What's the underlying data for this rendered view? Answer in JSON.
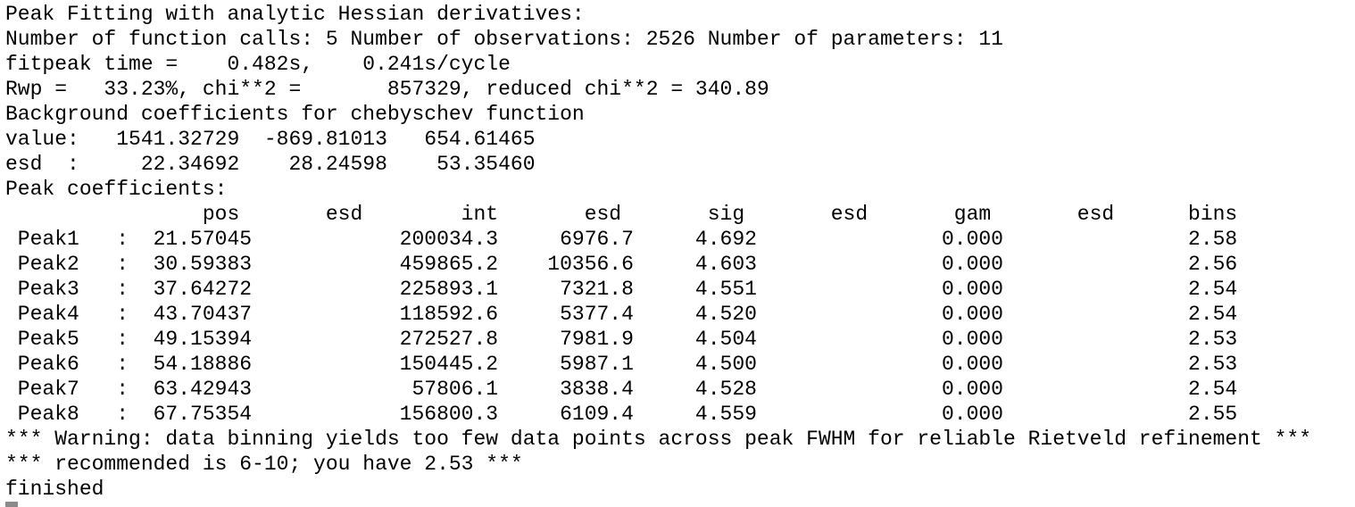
{
  "terminal": {
    "lines": [
      "Peak Fitting with analytic Hessian derivatives:",
      "Number of function calls: 5 Number of observations: 2526 Number of parameters: 11",
      "fitpeak time =    0.482s,    0.241s/cycle",
      "Rwp =   33.23%, chi**2 =       857329, reduced chi**2 = 340.89",
      "Background coefficients for chebyschev function",
      "value:   1541.32729  -869.81013   654.61465",
      "esd  :     22.34692    28.24598    53.35460",
      "Peak coefficients:",
      "                pos       esd        int       esd       sig       esd       gam       esd      bins",
      " Peak1   :  21.57045            200034.3     6976.7     4.692               0.000               2.58",
      " Peak2   :  30.59383            459865.2    10356.6     4.603               0.000               2.56",
      " Peak3   :  37.64272            225893.1     7321.8     4.551               0.000               2.54",
      " Peak4   :  43.70437            118592.6     5377.4     4.520               0.000               2.54",
      " Peak5   :  49.15394            272527.8     7981.9     4.504               0.000               2.53",
      " Peak6   :  54.18886            150445.2     5987.1     4.500               0.000               2.53",
      " Peak7   :  63.42943             57806.1     3838.4     4.528               0.000               2.54",
      " Peak8   :  67.75354            156800.3     6109.4     4.559               0.000               2.55",
      "*** Warning: data binning yields too few data points across peak FWHM for reliable Rietveld refinement ***",
      "*** recommended is 6-10; you have 2.53 ***",
      "finished"
    ]
  }
}
